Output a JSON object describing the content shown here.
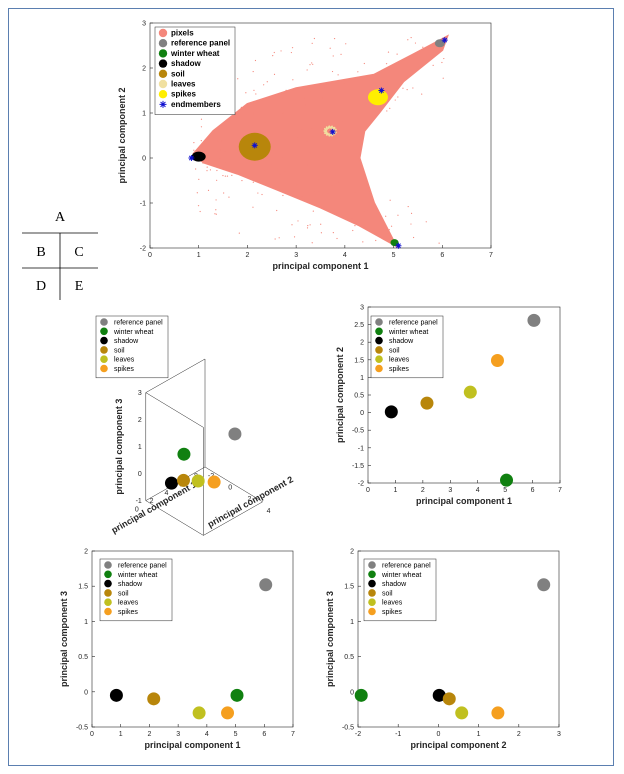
{
  "layout_key": {
    "labels": [
      "A",
      "B",
      "C",
      "D",
      "E"
    ]
  },
  "colors": {
    "pixels": "#f4877b",
    "reference_panel": "#808080",
    "winter_wheat": "#108010",
    "shadow": "#000000",
    "soil": "#b8860b",
    "leaves": "#c0c020",
    "spikes": "#f59f1f",
    "spikes_A": "#ffee00",
    "leaves_A": "#f0e0a0",
    "endmembers": "#1010d0"
  },
  "chart_data": [
    {
      "id": "A",
      "type": "scatter",
      "xlabel": "principal component 1",
      "ylabel": "principal component 2",
      "xlim": [
        0,
        7
      ],
      "ylim": [
        -2,
        3
      ],
      "xticks": [
        "0",
        "1",
        "2",
        "3",
        "4",
        "5",
        "6",
        "7"
      ],
      "yticks": [
        "-2",
        "-1",
        "0",
        "1",
        "2",
        "3"
      ],
      "legend": [
        "pixels",
        "reference panel",
        "winter wheat",
        "shadow",
        "soil",
        "leaves",
        "spikes",
        "endmembers"
      ],
      "cluster_points": [
        [
          6.0,
          2.6
        ],
        [
          5.05,
          -1.9
        ],
        [
          1.0,
          0.05
        ],
        [
          2.15,
          0.25
        ],
        [
          3.7,
          0.6
        ],
        [
          4.7,
          1.4
        ]
      ],
      "endmembers": [
        [
          6.05,
          2.62
        ],
        [
          5.1,
          -1.95
        ],
        [
          0.85,
          0.0
        ],
        [
          2.15,
          0.28
        ],
        [
          3.75,
          0.58
        ],
        [
          4.75,
          1.5
        ]
      ]
    },
    {
      "id": "B",
      "type": "scatter",
      "xlabel": "principal component 1",
      "ylabel": "principal component 2",
      "zlabel": "principal component 3",
      "xlim": [
        0,
        8
      ],
      "ylim": [
        -2,
        4
      ],
      "zlim": [
        -1,
        3
      ],
      "xticks": [
        "0",
        "2",
        "4",
        "6",
        "8"
      ],
      "yticks": [
        "-2",
        "0",
        "2",
        "4"
      ],
      "zticks": [
        "-1",
        "0",
        "1",
        "2",
        "3"
      ],
      "legend": [
        "reference panel",
        "winter wheat",
        "shadow",
        "soil",
        "leaves",
        "spikes"
      ],
      "points": [
        [
          6.05,
          2.62,
          1.52
        ],
        [
          5.05,
          -1.92,
          -0.05
        ],
        [
          0.85,
          0.02,
          -0.05
        ],
        [
          2.15,
          0.27,
          -0.1
        ],
        [
          3.73,
          0.58,
          -0.3
        ],
        [
          4.72,
          1.48,
          -0.3
        ]
      ]
    },
    {
      "id": "C",
      "type": "scatter",
      "xlabel": "principal component 1",
      "ylabel": "principal component 2",
      "xlim": [
        0,
        7
      ],
      "ylim": [
        -2,
        3
      ],
      "xticks": [
        "0",
        "1",
        "2",
        "3",
        "4",
        "5",
        "6",
        "7"
      ],
      "yticks": [
        "-2",
        "-1.5",
        "-1",
        "-0.5",
        "0",
        "0.5",
        "1",
        "1.5",
        "2",
        "2.5",
        "3"
      ],
      "legend": [
        "reference panel",
        "winter wheat",
        "shadow",
        "soil",
        "leaves",
        "spikes"
      ],
      "points": [
        [
          6.05,
          2.62
        ],
        [
          5.05,
          -1.92
        ],
        [
          0.85,
          0.02
        ],
        [
          2.15,
          0.27
        ],
        [
          3.73,
          0.58
        ],
        [
          4.72,
          1.48
        ]
      ]
    },
    {
      "id": "D",
      "type": "scatter",
      "xlabel": "principal component 1",
      "ylabel": "principal component 3",
      "xlim": [
        0,
        7
      ],
      "ylim": [
        -0.5,
        2
      ],
      "xticks": [
        "0",
        "1",
        "2",
        "3",
        "4",
        "5",
        "6",
        "7"
      ],
      "yticks": [
        "-0.5",
        "0",
        "0.5",
        "1",
        "1.5",
        "2"
      ],
      "legend": [
        "reference panel",
        "winter wheat",
        "shadow",
        "soil",
        "leaves",
        "spikes"
      ],
      "points": [
        [
          6.05,
          1.52
        ],
        [
          5.05,
          -0.05
        ],
        [
          0.85,
          -0.05
        ],
        [
          2.15,
          -0.1
        ],
        [
          3.73,
          -0.3
        ],
        [
          4.72,
          -0.3
        ]
      ]
    },
    {
      "id": "E",
      "type": "scatter",
      "xlabel": "principal component 2",
      "ylabel": "principal component 3",
      "xlim": [
        -2,
        3
      ],
      "ylim": [
        -0.5,
        2
      ],
      "xticks": [
        "-2",
        "-1",
        "0",
        "1",
        "2",
        "3"
      ],
      "yticks": [
        "-0.5",
        "0",
        "0.5",
        "1",
        "1.5",
        "2"
      ],
      "legend": [
        "reference panel",
        "winter wheat",
        "shadow",
        "soil",
        "leaves",
        "spikes"
      ],
      "points": [
        [
          2.62,
          1.52
        ],
        [
          -1.92,
          -0.05
        ],
        [
          0.02,
          -0.05
        ],
        [
          0.27,
          -0.1
        ],
        [
          0.58,
          -0.3
        ],
        [
          1.48,
          -0.3
        ]
      ]
    }
  ]
}
